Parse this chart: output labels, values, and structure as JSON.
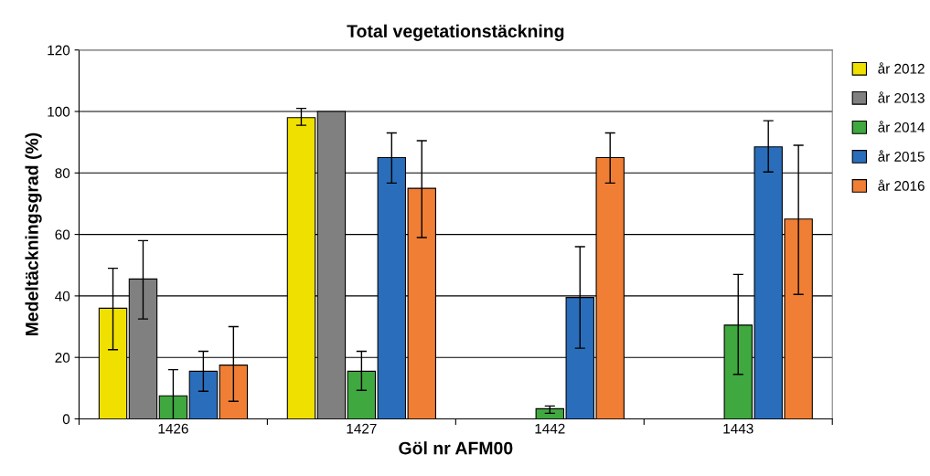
{
  "chart_data": {
    "type": "bar",
    "title": "Total vegetationstäckning",
    "xlabel": "Göl nr AFM00",
    "ylabel": "Medeltäckningsgrad (%)",
    "categories": [
      "1426",
      "1427",
      "1442",
      "1443"
    ],
    "series": [
      {
        "name": "år 2012",
        "color": "#f0e000",
        "values": [
          36,
          98,
          null,
          null
        ],
        "errors": [
          [
            22.5,
            49
          ],
          [
            95.5,
            101
          ],
          null,
          null
        ]
      },
      {
        "name": "år 2013",
        "color": "#808080",
        "values": [
          45.5,
          100,
          null,
          null
        ],
        "errors": [
          [
            32.5,
            58
          ],
          null,
          null,
          null
        ]
      },
      {
        "name": "år 2014",
        "color": "#3fa83f",
        "values": [
          7.5,
          15.5,
          3.3,
          30.5
        ],
        "errors": [
          [
            -1.5,
            16
          ],
          [
            9.3,
            22
          ],
          [
            1.8,
            4.2
          ],
          [
            14.5,
            47
          ]
        ]
      },
      {
        "name": "år 2015",
        "color": "#2a6ebb",
        "values": [
          15.5,
          85,
          39.5,
          88.5
        ],
        "errors": [
          [
            9,
            22
          ],
          [
            76.7,
            93
          ],
          [
            23,
            56
          ],
          [
            80.3,
            97
          ]
        ]
      },
      {
        "name": "år 2016",
        "color": "#f07f35",
        "values": [
          17.5,
          75,
          85,
          65
        ],
        "errors": [
          [
            5.7,
            30
          ],
          [
            59,
            90.5
          ],
          [
            76.7,
            93
          ],
          [
            40.5,
            89
          ]
        ]
      }
    ],
    "ylim": [
      0,
      120
    ],
    "yticks": [
      0,
      20,
      40,
      60,
      80,
      100,
      120
    ],
    "grid": "y",
    "legend": "right"
  }
}
